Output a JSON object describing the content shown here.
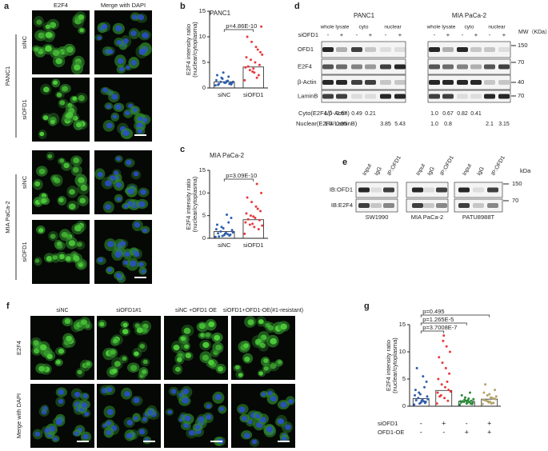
{
  "figure": {
    "a": {
      "panel": "a",
      "columns": [
        "E2F4",
        "Merge with DAPI"
      ],
      "groups": [
        {
          "name": "PANC1",
          "rows": [
            "siNC",
            "siOFD1"
          ]
        },
        {
          "name": "MIA PaCa-2",
          "rows": [
            "siNC",
            "siOFD1"
          ]
        }
      ]
    },
    "d": {
      "panel": "d",
      "cell_lines": [
        "PANC1",
        "MIA PaCa-2"
      ],
      "treatment": "siOFD1",
      "fractions": [
        "whole lysate",
        "cyto",
        "nuclear"
      ],
      "signs": [
        "-",
        "+",
        "-",
        "+",
        "-",
        "+"
      ],
      "bands": [
        "OFD1",
        "E2F4",
        "β-Actin",
        "LaminB"
      ],
      "mw_title": "MW（KDa）",
      "mw": [
        "150",
        "70",
        "40",
        "70"
      ],
      "quant": [
        {
          "name": "Cyto(E2F4/β-Actin)",
          "values": [
            [
              "1.0",
              "0.67",
              "0.49",
              "0.21",
              null,
              null
            ],
            [
              "1.0",
              "0.67",
              "0.82",
              "0.41",
              null,
              null
            ]
          ]
        },
        {
          "name": "Nuclear(E2F4/LaminB)",
          "values": [
            [
              "1.0",
              "0.95",
              null,
              null,
              "3.85",
              "5.43"
            ],
            [
              "1.0",
              "0.8",
              null,
              null,
              "2.1",
              "3.15"
            ]
          ]
        }
      ]
    },
    "e": {
      "panel": "e",
      "lanes": [
        "Input",
        "IgG",
        "IP:OFD1"
      ],
      "cell_lines": [
        "SW1990",
        "MIA PaCa-2",
        "PATU8988T"
      ],
      "blots": [
        "IB:OFD1",
        "IB:E2F4"
      ],
      "mw_title": "kDa",
      "mw": [
        "150",
        "70"
      ]
    },
    "f": {
      "panel": "f",
      "columns": [
        "siNC",
        "siOFD1#1",
        "siNC +OFD1 OE",
        "siOFD1+OFD1-OE(#1-resistant)"
      ],
      "rows": [
        "E2F4",
        "Merge with DAPI"
      ]
    }
  },
  "chart_data": [
    {
      "type": "bar",
      "panel": "b",
      "title": "PANC1",
      "ylabel": [
        "E2F4 intensity ratio",
        "(nuclear/cytoplasma)"
      ],
      "categories": [
        "siNC",
        "siOFD1"
      ],
      "colors": [
        "#2f5fad",
        "#e8393f"
      ],
      "values": [
        1.2,
        4.1
      ],
      "points": [
        [
          0.5,
          0.8,
          1.0,
          1.2,
          1.5,
          0.9,
          1.1,
          2.0,
          2.5,
          0.7,
          1.3,
          1.8,
          0.6,
          1.0,
          1.4,
          3.0,
          0.8,
          1.2,
          2.2,
          1.1
        ],
        [
          1.5,
          2.5,
          3.0,
          3.5,
          4.0,
          4.5,
          5.0,
          5.5,
          6.0,
          7.0,
          8.0,
          9.0,
          10.0,
          12.0,
          2.0,
          3.2,
          4.2,
          6.5,
          7.5,
          3.8
        ]
      ],
      "annotations": [
        "p=4.86E-10"
      ],
      "ylim": [
        0,
        15
      ],
      "yticks": [
        0,
        5,
        10,
        15
      ]
    },
    {
      "type": "bar",
      "panel": "c",
      "title": "MIA PaCa-2",
      "ylabel": [
        "E2F4 intensity ratio",
        "(nuclear/cytoplasma)"
      ],
      "categories": [
        "siNC",
        "siOFD1"
      ],
      "colors": [
        "#2f5fad",
        "#e8393f"
      ],
      "values": [
        1.5,
        4.1
      ],
      "points": [
        [
          0.3,
          0.6,
          1.0,
          1.5,
          2.0,
          0.8,
          1.2,
          2.5,
          3.0,
          4.5,
          5.2,
          0.5,
          1.1,
          1.8,
          0.9,
          2.2,
          0.4,
          1.3,
          3.5,
          0.7
        ],
        [
          1.0,
          2.0,
          2.5,
          3.0,
          3.5,
          4.0,
          4.5,
          5.0,
          5.5,
          6.0,
          7.0,
          8.0,
          9.0,
          10.0,
          12.0,
          3.2,
          4.2,
          2.8,
          6.5,
          4.8
        ]
      ],
      "annotations": [
        "p=3.09E-10"
      ],
      "ylim": [
        0,
        15
      ],
      "yticks": [
        0,
        5,
        10,
        15
      ]
    },
    {
      "type": "bar",
      "panel": "g",
      "ylabel": [
        "E2F4 intensity ratio",
        "(nuclear/cytoplasma)"
      ],
      "conditions": [
        {
          "name": "siOFD1",
          "signs": [
            "-",
            "+",
            "-",
            "+"
          ]
        },
        {
          "name": "OFD1-OE",
          "signs": [
            "-",
            "-",
            "+",
            "+"
          ]
        }
      ],
      "colors": [
        "#2f5fad",
        "#e8393f",
        "#2e8b3a",
        "#b5a46a"
      ],
      "values": [
        1.4,
        2.9,
        0.9,
        1.3
      ],
      "points": [
        [
          0.3,
          0.6,
          1.0,
          1.5,
          2.0,
          0.8,
          1.2,
          2.5,
          3.0,
          4.5,
          5.5,
          0.5,
          1.1,
          1.8,
          0.9,
          2.2,
          7.0,
          1.3,
          3.5,
          0.7
        ],
        [
          0.5,
          1.0,
          1.5,
          2.0,
          2.5,
          3.0,
          3.5,
          4.0,
          5.0,
          6.0,
          7.0,
          8.0,
          9.0,
          10.0,
          11.0,
          12.0,
          1.8,
          2.7,
          4.5,
          13.0
        ],
        [
          0.3,
          0.5,
          0.6,
          0.8,
          0.9,
          1.0,
          1.1,
          1.2,
          0.7,
          0.4,
          1.4,
          1.6,
          2.0,
          0.6,
          0.8,
          1.0,
          0.9,
          1.3,
          2.5,
          0.5
        ],
        [
          0.4,
          0.6,
          0.8,
          1.0,
          1.2,
          1.4,
          1.6,
          2.0,
          2.5,
          3.0,
          0.5,
          0.9,
          1.1,
          1.3,
          1.5,
          0.7,
          4.0,
          1.8,
          0.6,
          2.2
        ]
      ],
      "annotations": [
        "p=3.7008E-7",
        "p=1.265E-5",
        "p=0.495"
      ],
      "ylim": [
        0,
        15
      ],
      "yticks": [
        0,
        5,
        10,
        15
      ]
    }
  ]
}
